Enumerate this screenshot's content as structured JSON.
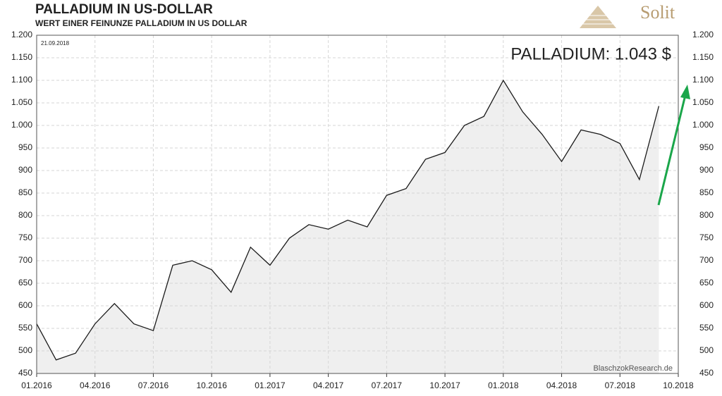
{
  "chart_data": {
    "type": "line",
    "title": "PALLADIUM  IN  US-DOLLAR",
    "subtitle": "WERT EINER FEINUNZE PALLADIUM IN US DOLLAR",
    "date_note": "21.09.2018",
    "annotation": "PALLADIUM: 1.043 $",
    "source": "BlaschzokResearch.de",
    "logo": "Solit",
    "x": [
      "01.2016",
      "02.2016",
      "03.2016",
      "04.2016",
      "05.2016",
      "06.2016",
      "07.2016",
      "08.2016",
      "09.2016",
      "10.2016",
      "11.2016",
      "12.2016",
      "01.2017",
      "02.2017",
      "03.2017",
      "04.2017",
      "05.2017",
      "06.2017",
      "07.2017",
      "08.2017",
      "09.2017",
      "10.2017",
      "11.2017",
      "12.2017",
      "01.2018",
      "02.2018",
      "03.2018",
      "04.2018",
      "05.2018",
      "06.2018",
      "07.2018",
      "08.2018",
      "09.2018",
      "10.2018"
    ],
    "xticks": [
      "01.2016",
      "04.2016",
      "07.2016",
      "10.2016",
      "01.2017",
      "04.2017",
      "07.2017",
      "10.2017",
      "01.2018",
      "04.2018",
      "07.2018",
      "10.2018"
    ],
    "series": [
      {
        "name": "Palladium",
        "color": "#1a1a1a",
        "values": [
          560,
          480,
          495,
          560,
          605,
          560,
          545,
          690,
          700,
          680,
          630,
          730,
          690,
          750,
          780,
          770,
          790,
          775,
          845,
          860,
          925,
          940,
          1000,
          1020,
          1100,
          1030,
          980,
          920,
          990,
          980,
          960,
          880,
          1043,
          null
        ]
      }
    ],
    "ylim": [
      450,
      1200
    ],
    "yticks": [
      450,
      500,
      550,
      600,
      650,
      700,
      750,
      800,
      850,
      900,
      950,
      {
        "value": 1000,
        "label": "1.000"
      },
      {
        "value": 1050,
        "label": "1.050"
      },
      {
        "value": 1100,
        "label": "1.100"
      },
      {
        "value": 1150,
        "label": "1.150"
      },
      {
        "value": 1200,
        "label": "1.200"
      }
    ],
    "grid": true,
    "area_color": "#efefef"
  }
}
